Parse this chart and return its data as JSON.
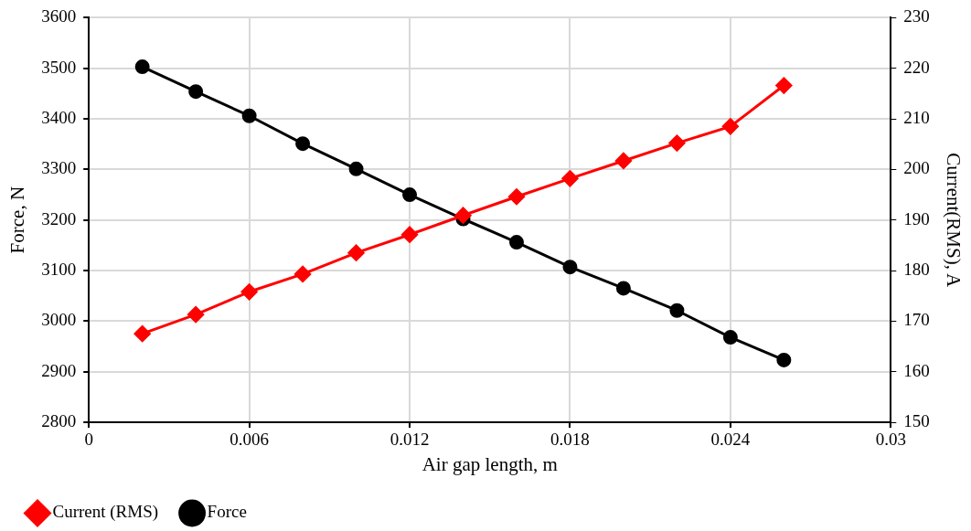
{
  "chart_data": {
    "type": "line",
    "xlabel": "Air gap length, m",
    "ylabel": "Force, N",
    "y2label": "Current(RMS), A",
    "x": [
      0.002,
      0.004,
      0.006,
      0.008,
      0.01,
      0.012,
      0.014,
      0.016,
      0.018,
      0.02,
      0.022,
      0.024,
      0.026
    ],
    "series": [
      {
        "name": "Force",
        "color": "#000000",
        "marker": "circle",
        "values": [
          3503,
          3454,
          3406,
          3351,
          3301,
          3250,
          3202,
          3156,
          3107,
          3065,
          3021,
          2968,
          2923
        ]
      },
      {
        "name": "Current (RMS)",
        "color": "#ff0000",
        "marker": "diamond",
        "axis": "y2",
        "values": [
          167.5,
          171.3,
          175.8,
          179.3,
          183.5,
          187.1,
          190.9,
          194.6,
          198.2,
          201.7,
          205.2,
          208.5,
          216.6
        ]
      }
    ],
    "xlim": [
      0,
      0.03
    ],
    "xticks": [
      0,
      0.006,
      0.012,
      0.018,
      0.024,
      0.03
    ],
    "ylim": [
      2800,
      3600
    ],
    "yticks": [
      2800,
      2900,
      3000,
      3100,
      3200,
      3300,
      3400,
      3500,
      3600
    ],
    "y2lim": [
      150,
      230
    ],
    "y2ticks": [
      150,
      160,
      170,
      180,
      190,
      200,
      210,
      220,
      230
    ],
    "grid": true,
    "legend": "bottom",
    "line_style": "solid"
  }
}
